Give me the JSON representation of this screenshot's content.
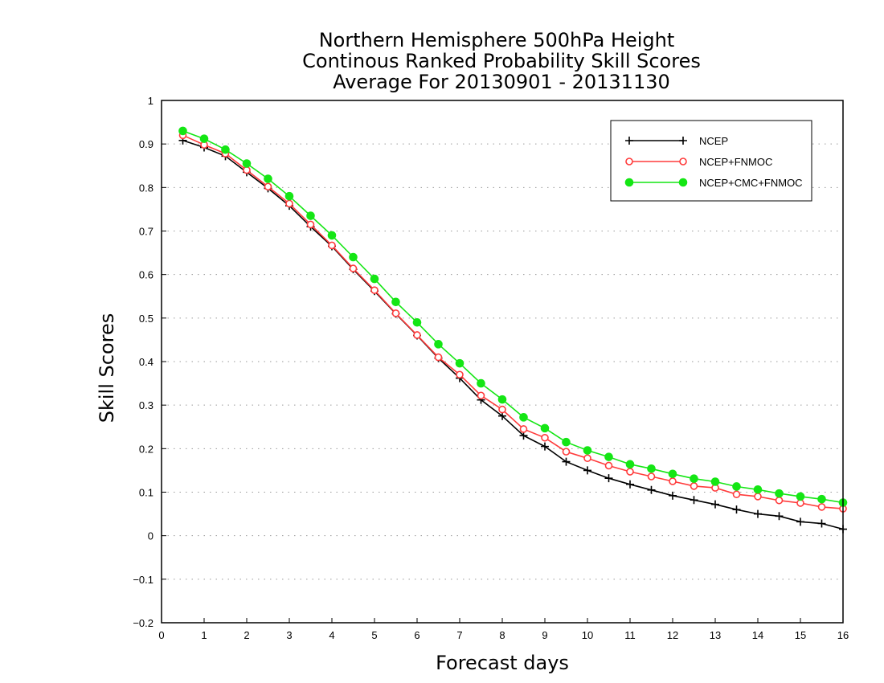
{
  "chart_data": {
    "type": "line",
    "title_lines": [
      "Northern Hemisphere 500hPa Height",
      "Continous Ranked Probability Skill Scores",
      "Average For 20130901 - 20131130"
    ],
    "xlabel": "Forecast days",
    "ylabel": "Skill Scores",
    "xlim": [
      0,
      16
    ],
    "ylim": [
      -0.2,
      1
    ],
    "x_ticks": [
      "0",
      "1",
      "2",
      "3",
      "4",
      "5",
      "6",
      "7",
      "8",
      "9",
      "10",
      "11",
      "12",
      "13",
      "14",
      "15",
      "16"
    ],
    "y_ticks": [
      "−0.2",
      "−0.1",
      "0",
      "0.1",
      "0.2",
      "0.3",
      "0.4",
      "0.5",
      "0.6",
      "0.7",
      "0.8",
      "0.9",
      "1"
    ],
    "grid": "horizontal dotted",
    "legend_position": "top-right",
    "x": [
      0.5,
      1,
      1.5,
      2,
      2.5,
      3,
      3.5,
      4,
      4.5,
      5,
      5.5,
      6,
      6.5,
      7,
      7.5,
      8,
      8.5,
      9,
      9.5,
      10,
      10.5,
      11,
      11.5,
      12,
      12.5,
      13,
      13.5,
      14,
      14.5,
      15,
      15.5,
      16
    ],
    "series": [
      {
        "name": "NCEP",
        "color": "#000000",
        "marker": "plus",
        "values": [
          0.908,
          0.892,
          0.872,
          0.835,
          0.798,
          0.758,
          0.71,
          0.665,
          0.612,
          0.562,
          0.51,
          0.46,
          0.408,
          0.362,
          0.312,
          0.275,
          0.23,
          0.205,
          0.17,
          0.15,
          0.132,
          0.118,
          0.105,
          0.092,
          0.082,
          0.072,
          0.06,
          0.05,
          0.045,
          0.032,
          0.028,
          0.015
        ]
      },
      {
        "name": "NCEP+FNMOC",
        "color": "#ff3b3b",
        "marker": "open-circle",
        "values": [
          0.92,
          0.898,
          0.878,
          0.84,
          0.802,
          0.763,
          0.715,
          0.667,
          0.614,
          0.564,
          0.511,
          0.461,
          0.41,
          0.37,
          0.322,
          0.29,
          0.245,
          0.225,
          0.193,
          0.178,
          0.161,
          0.147,
          0.136,
          0.125,
          0.114,
          0.11,
          0.095,
          0.09,
          0.081,
          0.075,
          0.066,
          0.062
        ]
      },
      {
        "name": "NCEP+CMC+FNMOC",
        "color": "#14e614",
        "marker": "filled-circle",
        "values": [
          0.93,
          0.912,
          0.887,
          0.855,
          0.82,
          0.78,
          0.735,
          0.69,
          0.64,
          0.59,
          0.537,
          0.49,
          0.44,
          0.396,
          0.35,
          0.313,
          0.272,
          0.247,
          0.215,
          0.196,
          0.181,
          0.164,
          0.154,
          0.142,
          0.131,
          0.124,
          0.113,
          0.106,
          0.097,
          0.09,
          0.084,
          0.076
        ]
      }
    ]
  }
}
